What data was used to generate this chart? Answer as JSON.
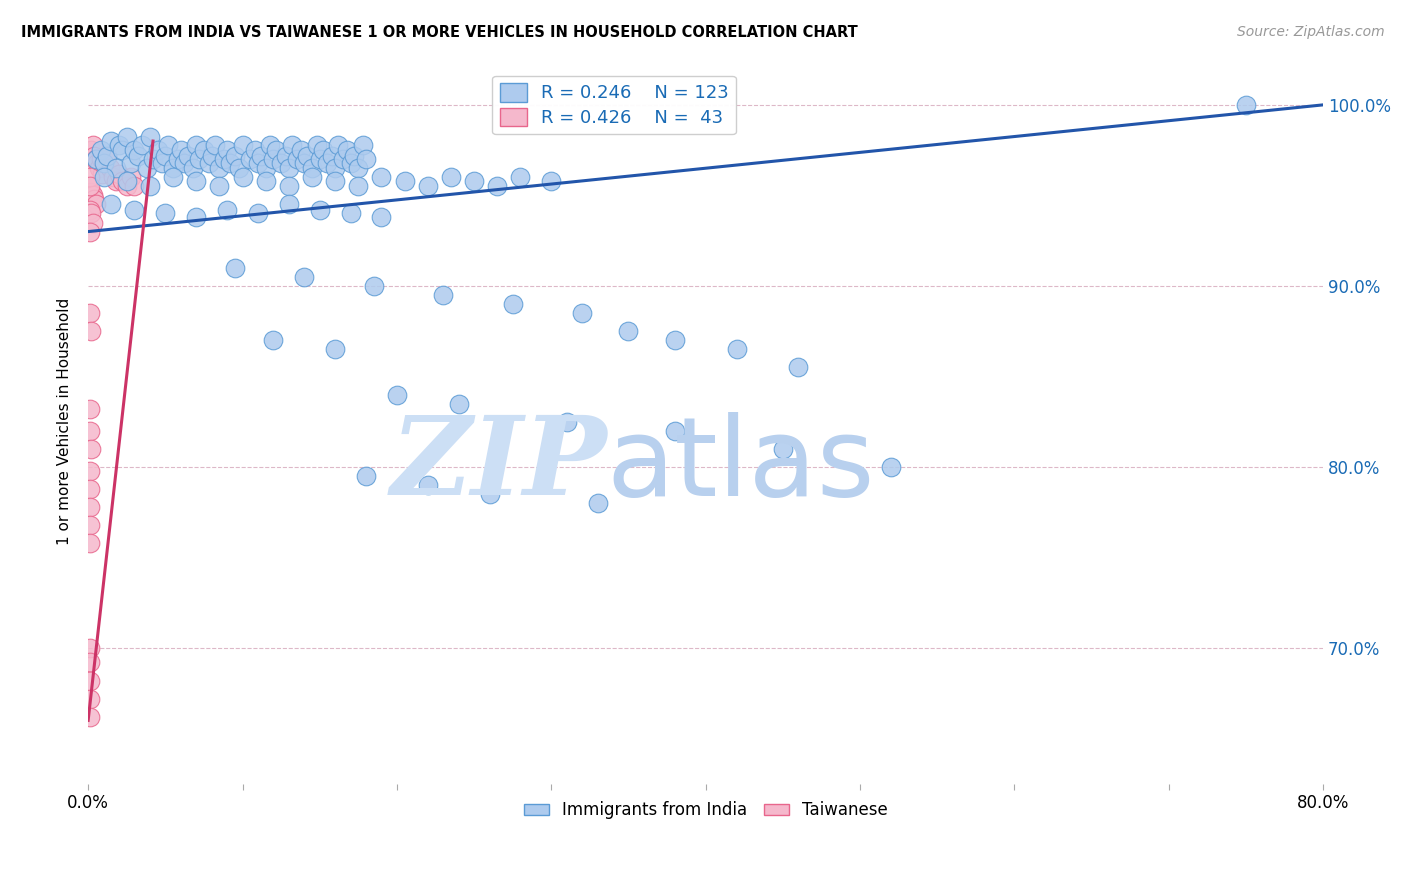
{
  "title": "IMMIGRANTS FROM INDIA VS TAIWANESE 1 OR MORE VEHICLES IN HOUSEHOLD CORRELATION CHART",
  "source": "Source: ZipAtlas.com",
  "ylabel": "1 or more Vehicles in Household",
  "xmin": 0.0,
  "xmax": 0.8,
  "ymin": 0.625,
  "ymax": 1.025,
  "yticks": [
    0.7,
    0.8,
    0.9,
    1.0
  ],
  "ytick_labels": [
    "70.0%",
    "80.0%",
    "90.0%",
    "100.0%"
  ],
  "xticks": [
    0.0,
    0.1,
    0.2,
    0.3,
    0.4,
    0.5,
    0.6,
    0.7,
    0.8
  ],
  "xtick_labels": [
    "0.0%",
    "",
    "",
    "",
    "",
    "",
    "",
    "",
    "80.0%"
  ],
  "india_R": 0.246,
  "india_N": 123,
  "taiwan_R": 0.426,
  "taiwan_N": 43,
  "india_color": "#aecbee",
  "india_edge_color": "#5b9bd5",
  "taiwan_color": "#f5b8cc",
  "taiwan_edge_color": "#e8668c",
  "trendline_color": "#2255aa",
  "trendline_pink": "#cc3366",
  "watermark_zip_color": "#ccdff5",
  "watermark_atlas_color": "#b8d0ee",
  "legend_color": "#1a6bb5",
  "india_x": [
    0.005,
    0.008,
    0.01,
    0.012,
    0.015,
    0.018,
    0.02,
    0.022,
    0.025,
    0.028,
    0.03,
    0.032,
    0.035,
    0.038,
    0.04,
    0.042,
    0.045,
    0.048,
    0.05,
    0.052,
    0.055,
    0.058,
    0.06,
    0.062,
    0.065,
    0.068,
    0.07,
    0.072,
    0.075,
    0.078,
    0.08,
    0.082,
    0.085,
    0.088,
    0.09,
    0.092,
    0.095,
    0.098,
    0.1,
    0.105,
    0.108,
    0.11,
    0.112,
    0.115,
    0.118,
    0.12,
    0.122,
    0.125,
    0.128,
    0.13,
    0.132,
    0.135,
    0.138,
    0.14,
    0.142,
    0.145,
    0.148,
    0.15,
    0.152,
    0.155,
    0.158,
    0.16,
    0.162,
    0.165,
    0.168,
    0.17,
    0.172,
    0.175,
    0.178,
    0.18,
    0.01,
    0.025,
    0.04,
    0.055,
    0.07,
    0.085,
    0.1,
    0.115,
    0.13,
    0.145,
    0.16,
    0.175,
    0.19,
    0.205,
    0.22,
    0.235,
    0.25,
    0.265,
    0.28,
    0.3,
    0.015,
    0.03,
    0.05,
    0.07,
    0.09,
    0.11,
    0.13,
    0.15,
    0.17,
    0.19,
    0.095,
    0.14,
    0.185,
    0.23,
    0.275,
    0.32,
    0.35,
    0.38,
    0.42,
    0.46,
    0.12,
    0.16,
    0.2,
    0.24,
    0.31,
    0.38,
    0.45,
    0.52,
    0.18,
    0.22,
    0.26,
    0.33,
    0.75
  ],
  "india_y": [
    0.97,
    0.975,
    0.968,
    0.972,
    0.98,
    0.965,
    0.978,
    0.975,
    0.982,
    0.968,
    0.975,
    0.972,
    0.978,
    0.965,
    0.982,
    0.97,
    0.975,
    0.968,
    0.972,
    0.978,
    0.965,
    0.97,
    0.975,
    0.968,
    0.972,
    0.965,
    0.978,
    0.97,
    0.975,
    0.968,
    0.972,
    0.978,
    0.965,
    0.97,
    0.975,
    0.968,
    0.972,
    0.965,
    0.978,
    0.97,
    0.975,
    0.968,
    0.972,
    0.965,
    0.978,
    0.97,
    0.975,
    0.968,
    0.972,
    0.965,
    0.978,
    0.97,
    0.975,
    0.968,
    0.972,
    0.965,
    0.978,
    0.97,
    0.975,
    0.968,
    0.972,
    0.965,
    0.978,
    0.97,
    0.975,
    0.968,
    0.972,
    0.965,
    0.978,
    0.97,
    0.96,
    0.958,
    0.955,
    0.96,
    0.958,
    0.955,
    0.96,
    0.958,
    0.955,
    0.96,
    0.958,
    0.955,
    0.96,
    0.958,
    0.955,
    0.96,
    0.958,
    0.955,
    0.96,
    0.958,
    0.945,
    0.942,
    0.94,
    0.938,
    0.942,
    0.94,
    0.945,
    0.942,
    0.94,
    0.938,
    0.91,
    0.905,
    0.9,
    0.895,
    0.89,
    0.885,
    0.875,
    0.87,
    0.865,
    0.855,
    0.87,
    0.865,
    0.84,
    0.835,
    0.825,
    0.82,
    0.81,
    0.8,
    0.795,
    0.79,
    0.785,
    0.78,
    1.0
  ],
  "taiwan_x": [
    0.002,
    0.003,
    0.004,
    0.005,
    0.006,
    0.007,
    0.008,
    0.009,
    0.01,
    0.012,
    0.014,
    0.016,
    0.018,
    0.02,
    0.022,
    0.025,
    0.028,
    0.03,
    0.002,
    0.003,
    0.004,
    0.005,
    0.001,
    0.002,
    0.003,
    0.001,
    0.001,
    0.001,
    0.001,
    0.002,
    0.001,
    0.001,
    0.002,
    0.001,
    0.001,
    0.001,
    0.001,
    0.001,
    0.001,
    0.001,
    0.001,
    0.001,
    0.001
  ],
  "taiwan_y": [
    0.975,
    0.978,
    0.972,
    0.97,
    0.968,
    0.965,
    0.97,
    0.962,
    0.968,
    0.972,
    0.965,
    0.96,
    0.958,
    0.962,
    0.958,
    0.955,
    0.96,
    0.955,
    0.952,
    0.95,
    0.948,
    0.945,
    0.942,
    0.94,
    0.935,
    0.93,
    0.96,
    0.955,
    0.885,
    0.875,
    0.832,
    0.82,
    0.81,
    0.798,
    0.788,
    0.778,
    0.768,
    0.758,
    0.7,
    0.692,
    0.682,
    0.672,
    0.662
  ],
  "trendline_india_x0": 0.0,
  "trendline_india_x1": 0.8,
  "trendline_india_y0": 0.93,
  "trendline_india_y1": 1.0
}
